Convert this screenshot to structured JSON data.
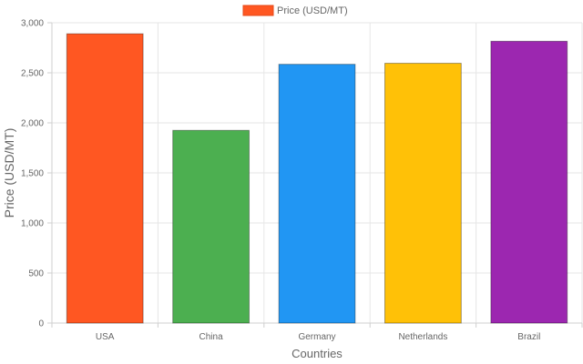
{
  "chart_data": {
    "type": "bar",
    "title": "",
    "categories": [
      "USA",
      "China",
      "Germany",
      "Netherlands",
      "Brazil"
    ],
    "series": [
      {
        "name": "Price (USD/MT)",
        "values": [
          2890,
          1925,
          2585,
          2595,
          2815
        ]
      }
    ],
    "colors": [
      "#FF5722",
      "#4CAF50",
      "#2196F3",
      "#FFC107",
      "#9C27B0"
    ],
    "legend_swatch_color": "#FF5722",
    "xlabel": "Countries",
    "ylabel": "Price (USD/MT)",
    "ylim": [
      0,
      3000
    ],
    "y_ticks": [
      0,
      500,
      1000,
      1500,
      2000,
      2500,
      3000
    ],
    "y_tick_labels": [
      "0",
      "500",
      "1,000",
      "1,500",
      "2,000",
      "2,500",
      "3,000"
    ],
    "grid": true,
    "legend_position": "top-center"
  }
}
